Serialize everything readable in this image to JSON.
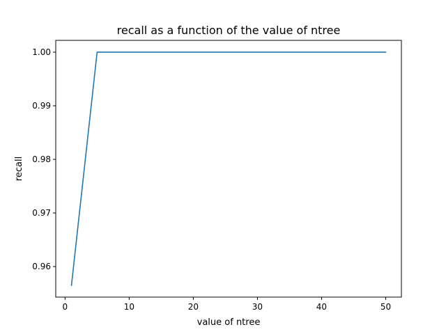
{
  "chart_data": {
    "type": "line",
    "title": "recall as a function of the value of ntree",
    "xlabel": "value of ntree",
    "ylabel": "recall",
    "xlim": [
      -1.45,
      52.45
    ],
    "ylim": [
      0.9543,
      1.0022
    ],
    "xticks": [
      0,
      10,
      20,
      30,
      40,
      50
    ],
    "xtick_labels": [
      "0",
      "10",
      "20",
      "30",
      "40",
      "50"
    ],
    "yticks": [
      0.96,
      0.97,
      0.98,
      0.99,
      1.0
    ],
    "ytick_labels": [
      "0.96",
      "0.97",
      "0.98",
      "0.99",
      "1.00"
    ],
    "grid": false,
    "legend": "none",
    "series": [
      {
        "color": "#1f77b4",
        "x": [
          1,
          5,
          10,
          15,
          20,
          25,
          30,
          35,
          40,
          45,
          50
        ],
        "y": [
          0.9565,
          1.0,
          1.0,
          1.0,
          1.0,
          1.0,
          1.0,
          1.0,
          1.0,
          1.0,
          1.0
        ]
      }
    ]
  }
}
